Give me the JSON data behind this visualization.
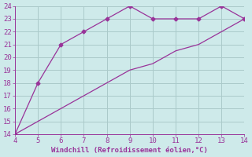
{
  "line1_x": [
    4,
    5,
    6,
    7,
    8,
    9,
    10,
    11,
    12,
    13,
    14
  ],
  "line1_y": [
    14,
    18,
    21,
    22,
    23,
    24,
    23,
    23,
    23,
    24,
    23
  ],
  "line2_x": [
    4,
    5,
    6,
    7,
    8,
    9,
    10,
    11,
    12,
    13,
    14
  ],
  "line2_y": [
    14,
    15,
    16,
    17,
    18,
    19,
    19.5,
    20.5,
    21,
    22,
    23
  ],
  "line_color": "#993399",
  "marker": "D",
  "marker_size": 2.5,
  "xlabel": "Windchill (Refroidissement éolien,°C)",
  "xlim": [
    4,
    14
  ],
  "ylim": [
    14,
    24
  ],
  "xticks": [
    4,
    5,
    6,
    7,
    8,
    9,
    10,
    11,
    12,
    13,
    14
  ],
  "yticks": [
    14,
    15,
    16,
    17,
    18,
    19,
    20,
    21,
    22,
    23,
    24
  ],
  "bg_color": "#ceeaea",
  "grid_color": "#aacaca",
  "tick_color": "#993399",
  "label_color": "#993399",
  "font_size": 6.5
}
